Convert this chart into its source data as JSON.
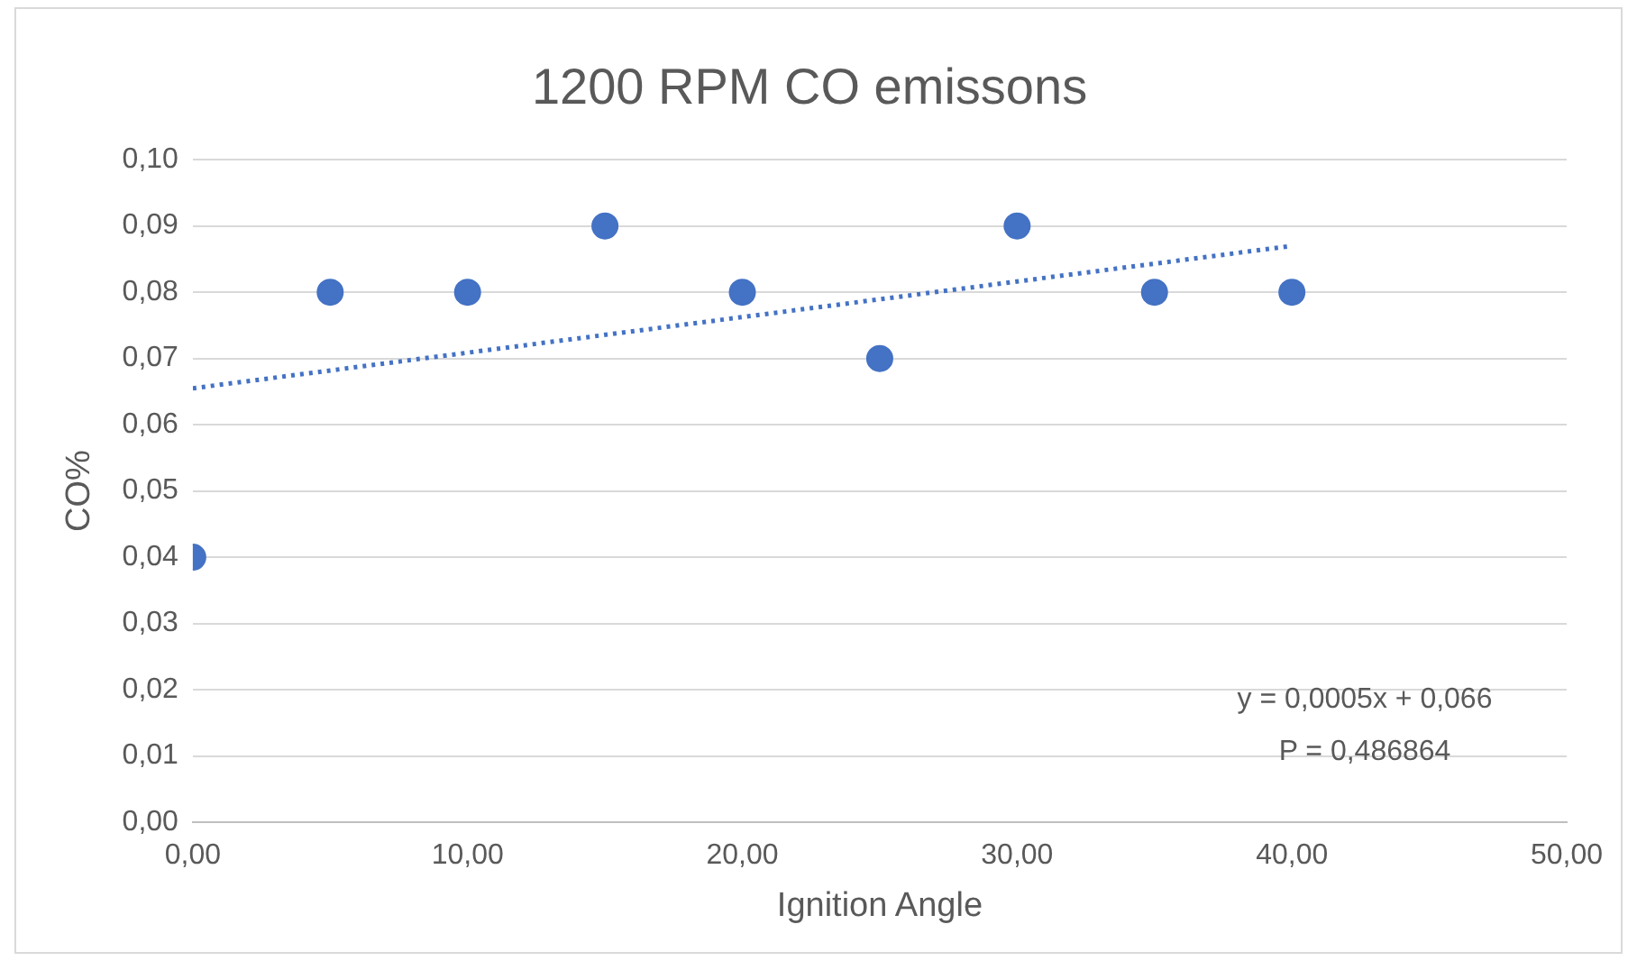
{
  "chart_data": {
    "type": "scatter",
    "title": "1200 RPM CO emissons",
    "xlabel": "Ignition Angle",
    "ylabel": "CO%",
    "xlim": [
      0,
      50
    ],
    "xticks": [
      {
        "value": 0,
        "label": "0,00"
      },
      {
        "value": 10,
        "label": "10,00"
      },
      {
        "value": 20,
        "label": "20,00"
      },
      {
        "value": 30,
        "label": "30,00"
      },
      {
        "value": 40,
        "label": "40,00"
      },
      {
        "value": 50,
        "label": "50,00"
      }
    ],
    "ylim": [
      0,
      0.1
    ],
    "yticks": [
      {
        "value": 0,
        "label": "0,00"
      },
      {
        "value": 0.01,
        "label": "0,01"
      },
      {
        "value": 0.02,
        "label": "0,02"
      },
      {
        "value": 0.03,
        "label": "0,03"
      },
      {
        "value": 0.04,
        "label": "0,04"
      },
      {
        "value": 0.05,
        "label": "0,05"
      },
      {
        "value": 0.06,
        "label": "0,06"
      },
      {
        "value": 0.07,
        "label": "0,07"
      },
      {
        "value": 0.08,
        "label": "0,08"
      },
      {
        "value": 0.09,
        "label": "0,09"
      },
      {
        "value": 0.1,
        "label": "0,10"
      }
    ],
    "grid": "y",
    "marker": "circle",
    "legend": false,
    "series": [
      {
        "color": "#4472c4",
        "x": [
          0,
          5,
          10,
          15,
          20,
          25,
          30,
          35,
          40
        ],
        "values": [
          0.04,
          0.08,
          0.08,
          0.09,
          0.08,
          0.07,
          0.09,
          0.08,
          0.08
        ]
      },
      {
        "type": "line",
        "color": "#4472c4",
        "line_style": "dotted",
        "marker": "none",
        "x": [
          0,
          40
        ],
        "values": [
          0.0655,
          0.087
        ]
      }
    ],
    "annotations": [
      "y = 0,0005x + 0,066",
      "P = 0,486864"
    ]
  }
}
